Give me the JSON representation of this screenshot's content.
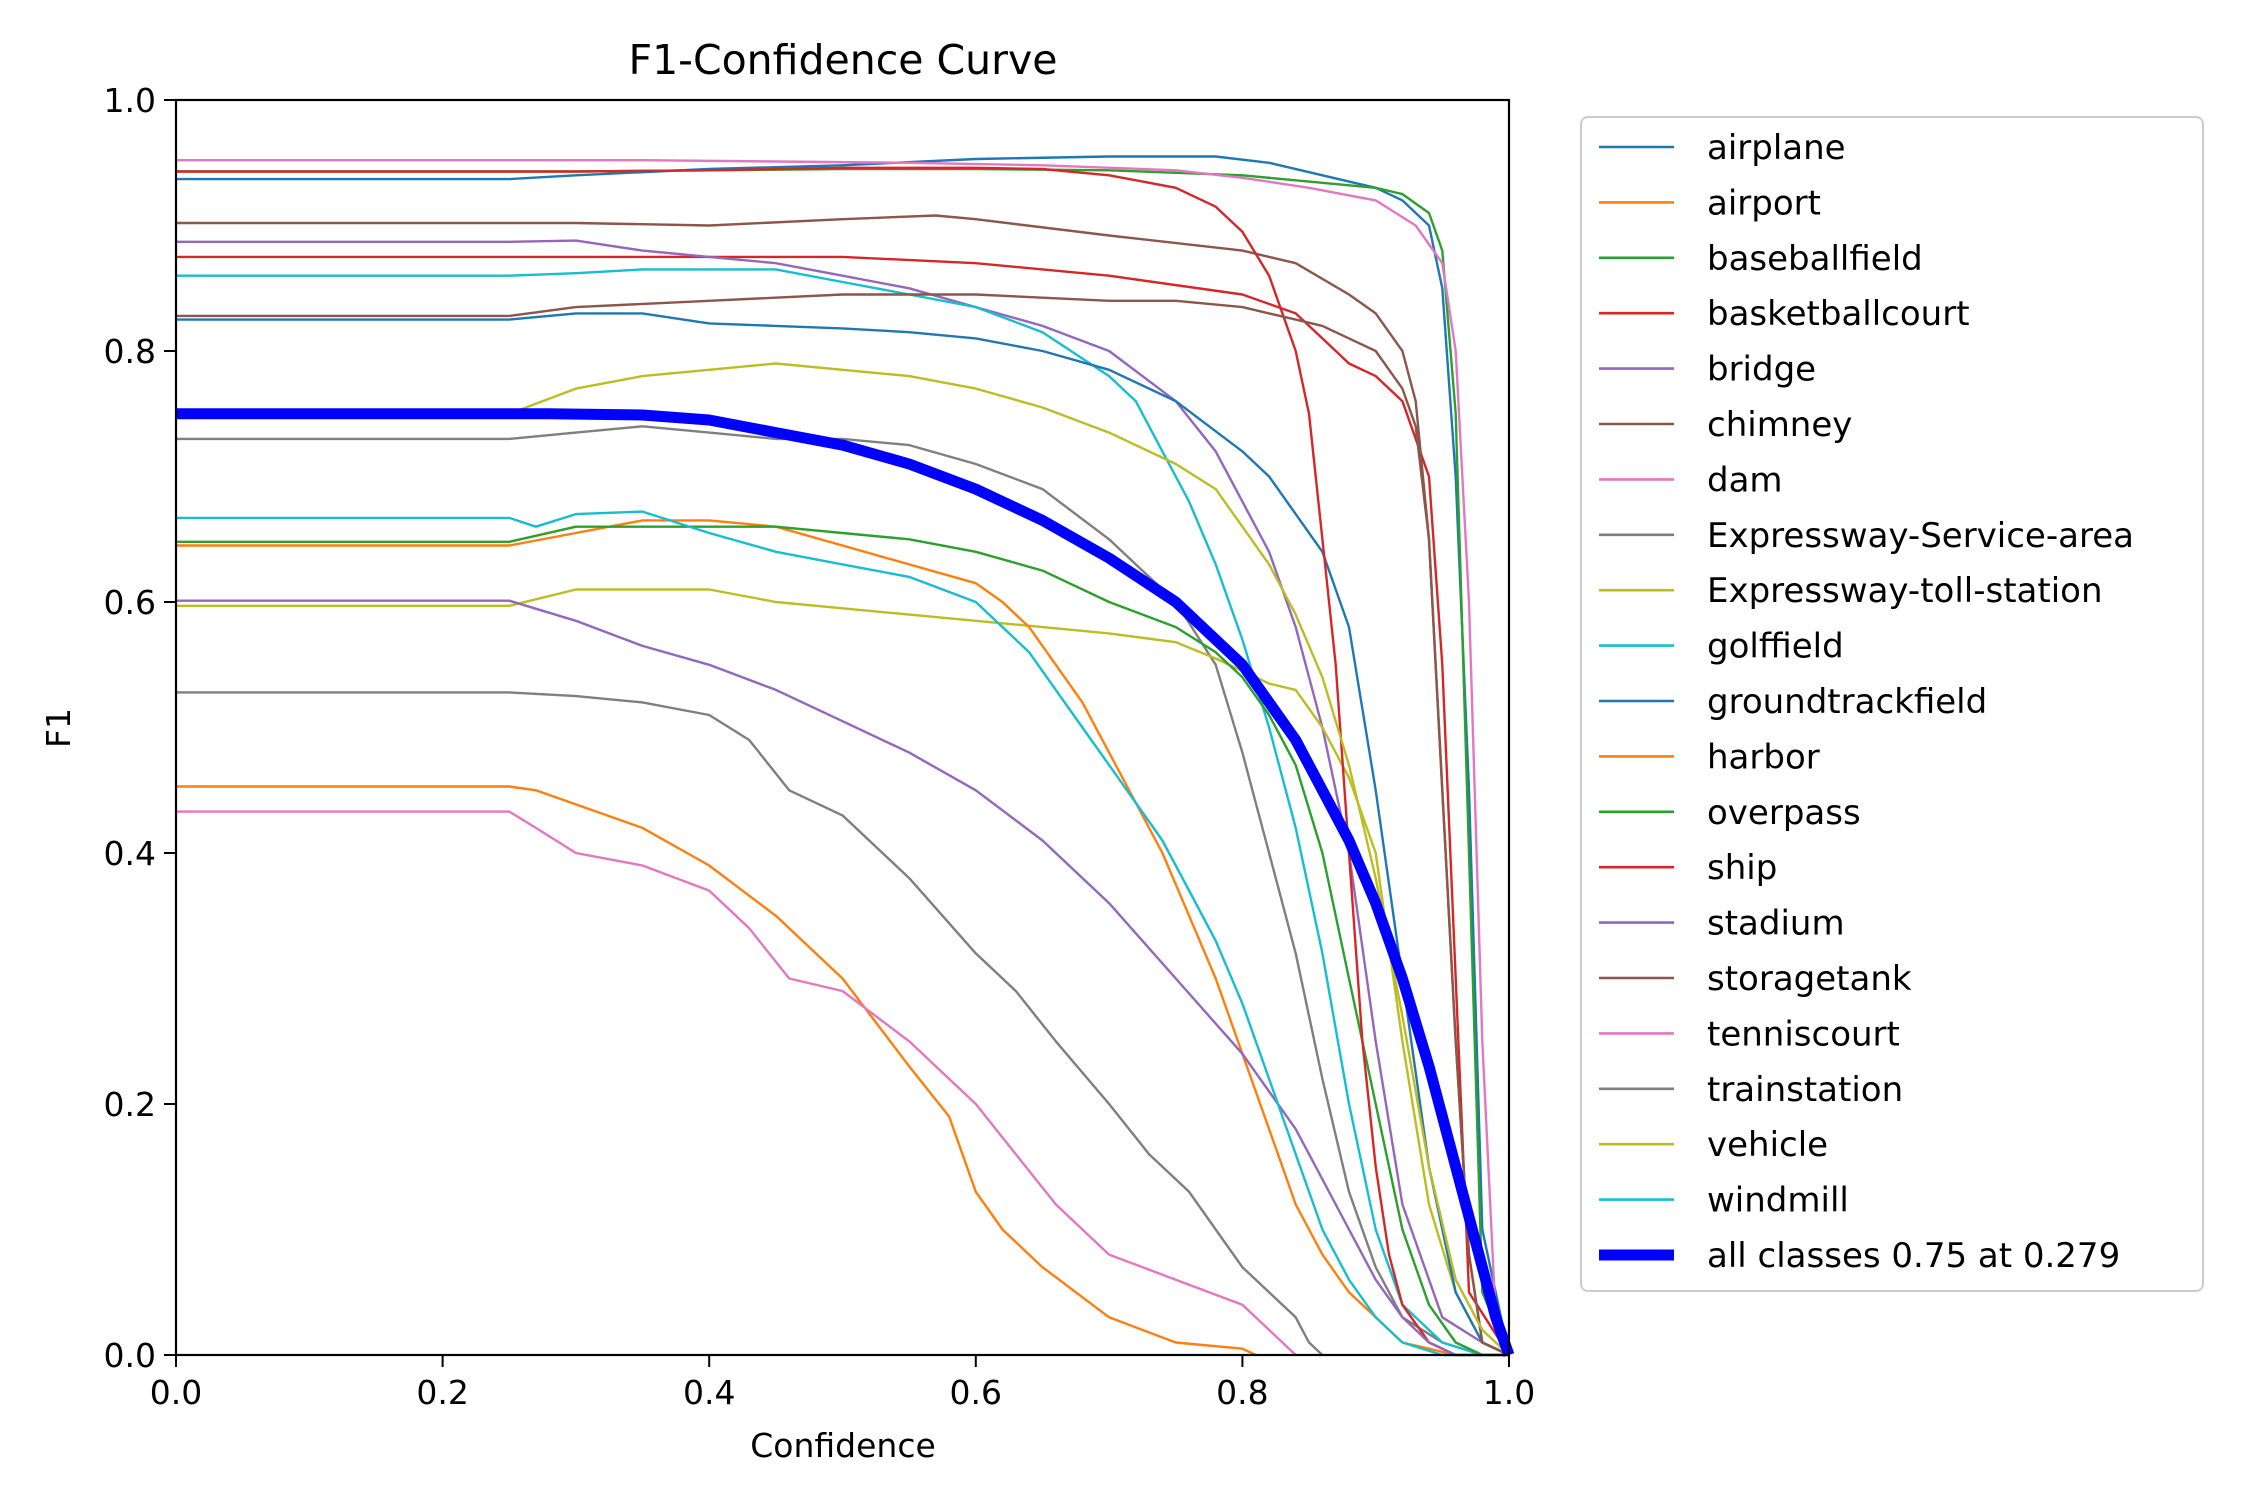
{
  "chart_data": {
    "type": "line",
    "title": "F1-Confidence Curve",
    "xlabel": "Confidence",
    "ylabel": "F1",
    "xlim": [
      0,
      1
    ],
    "ylim": [
      0,
      1
    ],
    "xticks": [
      "0.0",
      "0.2",
      "0.4",
      "0.6",
      "0.8",
      "1.0"
    ],
    "yticks": [
      "0.0",
      "0.2",
      "0.4",
      "0.6",
      "0.8",
      "1.0"
    ],
    "grid": false,
    "legend_position": "outside-right",
    "series": [
      {
        "name": "airplane",
        "color": "#1f77b4",
        "x": [
          0,
          0.25,
          0.3,
          0.4,
          0.5,
          0.6,
          0.7,
          0.78,
          0.82,
          0.86,
          0.9,
          0.92,
          0.94,
          0.95,
          0.96,
          0.97,
          0.98,
          1.0
        ],
        "y": [
          0.937,
          0.937,
          0.94,
          0.945,
          0.948,
          0.953,
          0.955,
          0.955,
          0.95,
          0.94,
          0.93,
          0.92,
          0.9,
          0.85,
          0.7,
          0.45,
          0.1,
          0.0
        ]
      },
      {
        "name": "airport",
        "color": "#ff7f0e",
        "x": [
          0,
          0.25,
          0.27,
          0.35,
          0.4,
          0.45,
          0.5,
          0.55,
          0.58,
          0.6,
          0.62,
          0.65,
          0.7,
          0.75,
          0.8,
          0.81
        ],
        "y": [
          0.453,
          0.453,
          0.45,
          0.42,
          0.39,
          0.35,
          0.3,
          0.23,
          0.19,
          0.13,
          0.1,
          0.07,
          0.03,
          0.01,
          0.005,
          0.0
        ]
      },
      {
        "name": "baseballfield",
        "color": "#2ca02c",
        "x": [
          0,
          0.25,
          0.3,
          0.4,
          0.5,
          0.6,
          0.7,
          0.8,
          0.85,
          0.9,
          0.92,
          0.94,
          0.95,
          0.96,
          0.97,
          0.98,
          1.0
        ],
        "y": [
          0.943,
          0.943,
          0.943,
          0.944,
          0.945,
          0.945,
          0.944,
          0.94,
          0.935,
          0.93,
          0.925,
          0.91,
          0.88,
          0.75,
          0.4,
          0.05,
          0.0
        ]
      },
      {
        "name": "basketballcourt",
        "color": "#d62728",
        "x": [
          0,
          0.25,
          0.3,
          0.4,
          0.5,
          0.6,
          0.7,
          0.8,
          0.84,
          0.86,
          0.88,
          0.9,
          0.92,
          0.94,
          0.95,
          0.96,
          0.97,
          1.0
        ],
        "y": [
          0.875,
          0.875,
          0.875,
          0.875,
          0.875,
          0.87,
          0.86,
          0.845,
          0.83,
          0.81,
          0.79,
          0.78,
          0.76,
          0.7,
          0.55,
          0.3,
          0.05,
          0.0
        ]
      },
      {
        "name": "bridge",
        "color": "#9467bd",
        "x": [
          0,
          0.25,
          0.3,
          0.35,
          0.4,
          0.45,
          0.5,
          0.55,
          0.6,
          0.65,
          0.7,
          0.75,
          0.78,
          0.8,
          0.82,
          0.84,
          0.86,
          0.88,
          0.9,
          0.92,
          0.95,
          0.98,
          1.0
        ],
        "y": [
          0.887,
          0.887,
          0.888,
          0.88,
          0.875,
          0.87,
          0.86,
          0.85,
          0.835,
          0.82,
          0.8,
          0.76,
          0.72,
          0.68,
          0.64,
          0.58,
          0.5,
          0.4,
          0.25,
          0.12,
          0.03,
          0.01,
          0.0
        ]
      },
      {
        "name": "chimney",
        "color": "#8c564b",
        "x": [
          0,
          0.25,
          0.3,
          0.4,
          0.5,
          0.57,
          0.6,
          0.7,
          0.8,
          0.84,
          0.88,
          0.9,
          0.92,
          0.93,
          0.94,
          0.95,
          0.96,
          0.97,
          0.98,
          1.0
        ],
        "y": [
          0.902,
          0.902,
          0.902,
          0.9,
          0.905,
          0.908,
          0.905,
          0.892,
          0.88,
          0.87,
          0.845,
          0.83,
          0.8,
          0.76,
          0.65,
          0.45,
          0.25,
          0.08,
          0.01,
          0.0
        ]
      },
      {
        "name": "dam",
        "color": "#e377c2",
        "x": [
          0,
          0.25,
          0.35,
          0.45,
          0.55,
          0.65,
          0.75,
          0.8,
          0.85,
          0.9,
          0.93,
          0.95,
          0.96,
          0.97,
          0.98,
          0.99,
          1.0
        ],
        "y": [
          0.952,
          0.952,
          0.952,
          0.951,
          0.95,
          0.948,
          0.944,
          0.938,
          0.93,
          0.92,
          0.9,
          0.87,
          0.8,
          0.6,
          0.25,
          0.03,
          0.0
        ]
      },
      {
        "name": "Expressway-Service-area",
        "color": "#7f7f7f",
        "x": [
          0,
          0.25,
          0.3,
          0.35,
          0.4,
          0.45,
          0.5,
          0.55,
          0.6,
          0.65,
          0.7,
          0.75,
          0.78,
          0.8,
          0.82,
          0.84,
          0.86,
          0.88,
          0.9,
          0.92,
          0.95,
          0.98,
          1.0
        ],
        "y": [
          0.73,
          0.73,
          0.735,
          0.74,
          0.735,
          0.73,
          0.73,
          0.725,
          0.71,
          0.69,
          0.65,
          0.6,
          0.55,
          0.48,
          0.4,
          0.32,
          0.22,
          0.13,
          0.07,
          0.03,
          0.01,
          0.0,
          0.0
        ]
      },
      {
        "name": "Expressway-toll-station",
        "color": "#bcbd22",
        "x": [
          0,
          0.25,
          0.3,
          0.35,
          0.4,
          0.45,
          0.5,
          0.55,
          0.6,
          0.65,
          0.7,
          0.75,
          0.78,
          0.8,
          0.82,
          0.84,
          0.86,
          0.88,
          0.9,
          0.92,
          0.94,
          0.96,
          0.98,
          1.0
        ],
        "y": [
          0.597,
          0.597,
          0.61,
          0.61,
          0.61,
          0.6,
          0.595,
          0.59,
          0.585,
          0.58,
          0.575,
          0.568,
          0.555,
          0.545,
          0.535,
          0.53,
          0.5,
          0.46,
          0.4,
          0.25,
          0.12,
          0.05,
          0.01,
          0.0
        ]
      },
      {
        "name": "golffield",
        "color": "#17becf",
        "x": [
          0,
          0.25,
          0.3,
          0.35,
          0.4,
          0.45,
          0.5,
          0.55,
          0.6,
          0.65,
          0.7,
          0.72,
          0.74,
          0.76,
          0.78,
          0.8,
          0.82,
          0.84,
          0.86,
          0.88,
          0.9,
          0.92,
          0.95,
          0.98,
          1.0
        ],
        "y": [
          0.86,
          0.86,
          0.862,
          0.865,
          0.865,
          0.865,
          0.855,
          0.845,
          0.835,
          0.815,
          0.78,
          0.76,
          0.72,
          0.68,
          0.63,
          0.57,
          0.5,
          0.42,
          0.32,
          0.2,
          0.1,
          0.04,
          0.01,
          0.0,
          0.0
        ]
      },
      {
        "name": "groundtrackfield",
        "color": "#1f77b4",
        "x": [
          0,
          0.25,
          0.3,
          0.35,
          0.4,
          0.45,
          0.5,
          0.55,
          0.6,
          0.65,
          0.7,
          0.75,
          0.8,
          0.82,
          0.84,
          0.86,
          0.88,
          0.9,
          0.92,
          0.94,
          0.96,
          0.98,
          1.0
        ],
        "y": [
          0.825,
          0.825,
          0.83,
          0.83,
          0.822,
          0.82,
          0.818,
          0.815,
          0.81,
          0.8,
          0.785,
          0.76,
          0.72,
          0.7,
          0.67,
          0.64,
          0.58,
          0.45,
          0.3,
          0.15,
          0.05,
          0.01,
          0.0
        ]
      },
      {
        "name": "harbor",
        "color": "#ff7f0e",
        "x": [
          0,
          0.25,
          0.3,
          0.35,
          0.4,
          0.45,
          0.5,
          0.55,
          0.6,
          0.62,
          0.64,
          0.66,
          0.68,
          0.7,
          0.72,
          0.74,
          0.76,
          0.78,
          0.8,
          0.82,
          0.84,
          0.86,
          0.88,
          0.9,
          0.92,
          0.94,
          0.96,
          1.0
        ],
        "y": [
          0.645,
          0.645,
          0.655,
          0.665,
          0.665,
          0.66,
          0.645,
          0.63,
          0.615,
          0.6,
          0.58,
          0.55,
          0.52,
          0.48,
          0.44,
          0.4,
          0.35,
          0.3,
          0.24,
          0.18,
          0.12,
          0.08,
          0.05,
          0.03,
          0.01,
          0.005,
          0.0,
          0.0
        ]
      },
      {
        "name": "overpass",
        "color": "#2ca02c",
        "x": [
          0,
          0.25,
          0.3,
          0.35,
          0.4,
          0.45,
          0.5,
          0.55,
          0.6,
          0.65,
          0.7,
          0.75,
          0.78,
          0.8,
          0.82,
          0.84,
          0.86,
          0.88,
          0.9,
          0.92,
          0.94,
          0.96,
          0.98,
          1.0
        ],
        "y": [
          0.648,
          0.648,
          0.66,
          0.66,
          0.66,
          0.66,
          0.655,
          0.65,
          0.64,
          0.625,
          0.6,
          0.58,
          0.56,
          0.54,
          0.51,
          0.47,
          0.4,
          0.3,
          0.2,
          0.1,
          0.04,
          0.01,
          0.0,
          0.0
        ]
      },
      {
        "name": "ship",
        "color": "#d62728",
        "x": [
          0,
          0.25,
          0.3,
          0.4,
          0.5,
          0.6,
          0.65,
          0.7,
          0.75,
          0.78,
          0.8,
          0.82,
          0.84,
          0.85,
          0.86,
          0.87,
          0.88,
          0.89,
          0.9,
          0.91,
          0.92,
          0.94,
          0.96,
          1.0
        ],
        "y": [
          0.943,
          0.943,
          0.943,
          0.944,
          0.946,
          0.946,
          0.945,
          0.94,
          0.93,
          0.915,
          0.895,
          0.86,
          0.8,
          0.75,
          0.65,
          0.55,
          0.4,
          0.25,
          0.15,
          0.08,
          0.04,
          0.01,
          0.0,
          0.0
        ]
      },
      {
        "name": "stadium",
        "color": "#9467bd",
        "x": [
          0,
          0.25,
          0.3,
          0.35,
          0.4,
          0.45,
          0.5,
          0.55,
          0.6,
          0.65,
          0.7,
          0.75,
          0.8,
          0.82,
          0.84,
          0.86,
          0.88,
          0.9,
          0.92,
          0.94,
          0.96,
          0.98,
          1.0
        ],
        "y": [
          0.601,
          0.601,
          0.585,
          0.565,
          0.55,
          0.53,
          0.505,
          0.48,
          0.45,
          0.41,
          0.36,
          0.3,
          0.24,
          0.21,
          0.18,
          0.14,
          0.1,
          0.06,
          0.03,
          0.01,
          0.0,
          0.0,
          0.0
        ]
      },
      {
        "name": "storagetank",
        "color": "#8c564b",
        "x": [
          0,
          0.25,
          0.3,
          0.4,
          0.5,
          0.6,
          0.7,
          0.75,
          0.8,
          0.82,
          0.84,
          0.86,
          0.88,
          0.9,
          0.92,
          0.93,
          0.94,
          0.95,
          0.96,
          0.97,
          0.98,
          1.0
        ],
        "y": [
          0.828,
          0.828,
          0.835,
          0.84,
          0.845,
          0.845,
          0.84,
          0.84,
          0.835,
          0.83,
          0.825,
          0.82,
          0.81,
          0.8,
          0.77,
          0.74,
          0.65,
          0.45,
          0.25,
          0.08,
          0.01,
          0.0
        ]
      },
      {
        "name": "tenniscourt",
        "color": "#e377c2",
        "x": [
          0,
          0.25,
          0.27,
          0.3,
          0.35,
          0.4,
          0.43,
          0.46,
          0.5,
          0.55,
          0.58,
          0.6,
          0.63,
          0.66,
          0.7,
          0.75,
          0.8,
          0.82,
          0.84
        ],
        "y": [
          0.433,
          0.433,
          0.42,
          0.4,
          0.39,
          0.37,
          0.34,
          0.3,
          0.29,
          0.25,
          0.22,
          0.2,
          0.16,
          0.12,
          0.08,
          0.06,
          0.04,
          0.02,
          0.0
        ]
      },
      {
        "name": "trainstation",
        "color": "#7f7f7f",
        "x": [
          0,
          0.25,
          0.3,
          0.35,
          0.4,
          0.43,
          0.46,
          0.5,
          0.55,
          0.6,
          0.63,
          0.66,
          0.7,
          0.73,
          0.76,
          0.78,
          0.8,
          0.82,
          0.84,
          0.85,
          0.86
        ],
        "y": [
          0.528,
          0.528,
          0.525,
          0.52,
          0.51,
          0.49,
          0.45,
          0.43,
          0.38,
          0.32,
          0.29,
          0.25,
          0.2,
          0.16,
          0.13,
          0.1,
          0.07,
          0.05,
          0.03,
          0.01,
          0.0
        ]
      },
      {
        "name": "vehicle",
        "color": "#bcbd22",
        "x": [
          0,
          0.25,
          0.3,
          0.35,
          0.4,
          0.45,
          0.5,
          0.55,
          0.6,
          0.65,
          0.7,
          0.75,
          0.78,
          0.8,
          0.82,
          0.84,
          0.86,
          0.88,
          0.9,
          0.92,
          0.94,
          0.96,
          0.98,
          1.0
        ],
        "y": [
          0.75,
          0.75,
          0.77,
          0.78,
          0.785,
          0.79,
          0.785,
          0.78,
          0.77,
          0.755,
          0.735,
          0.71,
          0.69,
          0.66,
          0.63,
          0.59,
          0.54,
          0.47,
          0.38,
          0.27,
          0.15,
          0.06,
          0.02,
          0.0
        ]
      },
      {
        "name": "windmill",
        "color": "#17becf",
        "x": [
          0,
          0.25,
          0.27,
          0.3,
          0.35,
          0.4,
          0.45,
          0.5,
          0.55,
          0.6,
          0.62,
          0.64,
          0.66,
          0.68,
          0.7,
          0.72,
          0.74,
          0.76,
          0.78,
          0.8,
          0.82,
          0.84,
          0.86,
          0.88,
          0.9,
          0.92,
          0.95,
          1.0
        ],
        "y": [
          0.667,
          0.667,
          0.66,
          0.67,
          0.672,
          0.655,
          0.64,
          0.63,
          0.62,
          0.6,
          0.58,
          0.56,
          0.53,
          0.5,
          0.47,
          0.44,
          0.41,
          0.37,
          0.33,
          0.28,
          0.22,
          0.16,
          0.1,
          0.06,
          0.03,
          0.01,
          0.0,
          0.0
        ]
      },
      {
        "name": "all classes 0.75 at 0.279",
        "color": "#0000ff",
        "bold": true,
        "x": [
          0,
          0.25,
          0.279,
          0.35,
          0.4,
          0.45,
          0.5,
          0.55,
          0.6,
          0.65,
          0.7,
          0.75,
          0.8,
          0.82,
          0.84,
          0.86,
          0.88,
          0.9,
          0.92,
          0.94,
          0.96,
          0.98,
          0.99,
          1.0
        ],
        "y": [
          0.75,
          0.75,
          0.75,
          0.749,
          0.745,
          0.735,
          0.725,
          0.71,
          0.69,
          0.665,
          0.635,
          0.6,
          0.55,
          0.52,
          0.49,
          0.45,
          0.41,
          0.36,
          0.3,
          0.23,
          0.15,
          0.07,
          0.03,
          0.0
        ]
      }
    ]
  }
}
